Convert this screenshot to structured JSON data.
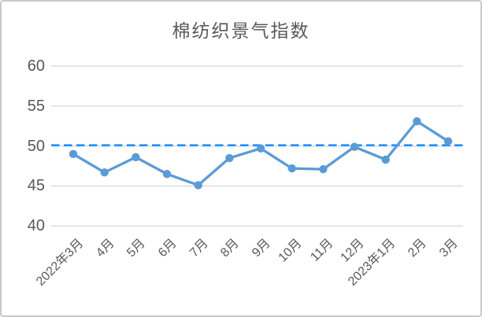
{
  "chart_data": {
    "type": "line",
    "title": "棉纺织景气指数",
    "categories": [
      "2022年3月",
      "4月",
      "5月",
      "6月",
      "7月",
      "8月",
      "9月",
      "10月",
      "11月",
      "12月",
      "2023年1月",
      "2月",
      "3月"
    ],
    "series": [
      {
        "name": "棉纺织景气指数",
        "values": [
          49.0,
          46.7,
          48.6,
          46.5,
          45.1,
          48.5,
          49.7,
          47.2,
          47.1,
          49.9,
          48.3,
          53.1,
          50.6
        ]
      }
    ],
    "reference_line": {
      "value": 50,
      "style": "dashed"
    },
    "y_ticks": [
      60,
      55,
      50,
      45,
      40
    ],
    "ylim": [
      40,
      60
    ],
    "grid": true,
    "legend_position": "none",
    "colors": {
      "series": "#5B9BD5",
      "reference": "#1E8FFF",
      "grid": "#D6D6D6",
      "text": "#595959",
      "frame_border": "#C9C9C9",
      "background": "#FFFFFF"
    }
  }
}
